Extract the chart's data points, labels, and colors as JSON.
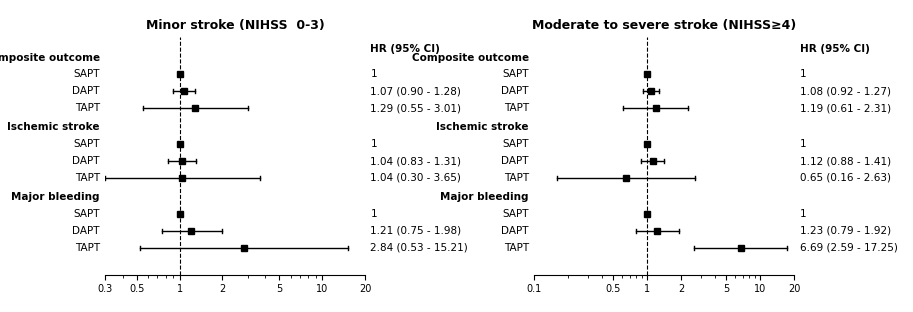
{
  "left_title": "Minor stroke (NIHSS  0-3)",
  "right_title": "Moderate to severe stroke (NIHSS≥4)",
  "left": {
    "groups": [
      {
        "label": "Composite outcome",
        "rows": [
          {
            "name": "SAPT",
            "hr": 1.0,
            "lo": 1.0,
            "hi": 1.0,
            "text": "1"
          },
          {
            "name": "DAPT",
            "hr": 1.07,
            "lo": 0.9,
            "hi": 1.28,
            "text": "1.07 (0.90 - 1.28)"
          },
          {
            "name": "TAPT",
            "hr": 1.29,
            "lo": 0.55,
            "hi": 3.01,
            "text": "1.29 (0.55 - 3.01)"
          }
        ]
      },
      {
        "label": "Ischemic stroke",
        "rows": [
          {
            "name": "SAPT",
            "hr": 1.0,
            "lo": 1.0,
            "hi": 1.0,
            "text": "1"
          },
          {
            "name": "DAPT",
            "hr": 1.04,
            "lo": 0.83,
            "hi": 1.31,
            "text": "1.04 (0.83 - 1.31)"
          },
          {
            "name": "TAPT",
            "hr": 1.04,
            "lo": 0.3,
            "hi": 3.65,
            "text": "1.04 (0.30 - 3.65)"
          }
        ]
      },
      {
        "label": "Major bleeding",
        "rows": [
          {
            "name": "SAPT",
            "hr": 1.0,
            "lo": 1.0,
            "hi": 1.0,
            "text": "1"
          },
          {
            "name": "DAPT",
            "hr": 1.21,
            "lo": 0.75,
            "hi": 1.98,
            "text": "1.21 (0.75 - 1.98)"
          },
          {
            "name": "TAPT",
            "hr": 2.84,
            "lo": 0.53,
            "hi": 15.21,
            "text": "2.84 (0.53 - 15.21)"
          }
        ]
      }
    ],
    "xlim": [
      0.3,
      20
    ],
    "xticks": [
      0.3,
      0.5,
      1,
      2,
      5,
      10,
      20
    ]
  },
  "right": {
    "groups": [
      {
        "label": "Composite outcome",
        "rows": [
          {
            "name": "SAPT",
            "hr": 1.0,
            "lo": 1.0,
            "hi": 1.0,
            "text": "1"
          },
          {
            "name": "DAPT",
            "hr": 1.08,
            "lo": 0.92,
            "hi": 1.27,
            "text": "1.08 (0.92 - 1.27)"
          },
          {
            "name": "TAPT",
            "hr": 1.19,
            "lo": 0.61,
            "hi": 2.31,
            "text": "1.19 (0.61 - 2.31)"
          }
        ]
      },
      {
        "label": "Ischemic stroke",
        "rows": [
          {
            "name": "SAPT",
            "hr": 1.0,
            "lo": 1.0,
            "hi": 1.0,
            "text": "1"
          },
          {
            "name": "DAPT",
            "hr": 1.12,
            "lo": 0.88,
            "hi": 1.41,
            "text": "1.12 (0.88 - 1.41)"
          },
          {
            "name": "TAPT",
            "hr": 0.65,
            "lo": 0.16,
            "hi": 2.63,
            "text": "0.65 (0.16 - 2.63)"
          }
        ]
      },
      {
        "label": "Major bleeding",
        "rows": [
          {
            "name": "SAPT",
            "hr": 1.0,
            "lo": 1.0,
            "hi": 1.0,
            "text": "1"
          },
          {
            "name": "DAPT",
            "hr": 1.23,
            "lo": 0.79,
            "hi": 1.92,
            "text": "1.23 (0.79 - 1.92)"
          },
          {
            "name": "TAPT",
            "hr": 6.69,
            "lo": 2.59,
            "hi": 17.25,
            "text": "6.69 (2.59 - 17.25)"
          }
        ]
      }
    ],
    "xlim": [
      0.1,
      20
    ],
    "xticks": [
      0.1,
      0.5,
      1,
      2,
      5,
      10,
      20
    ]
  }
}
